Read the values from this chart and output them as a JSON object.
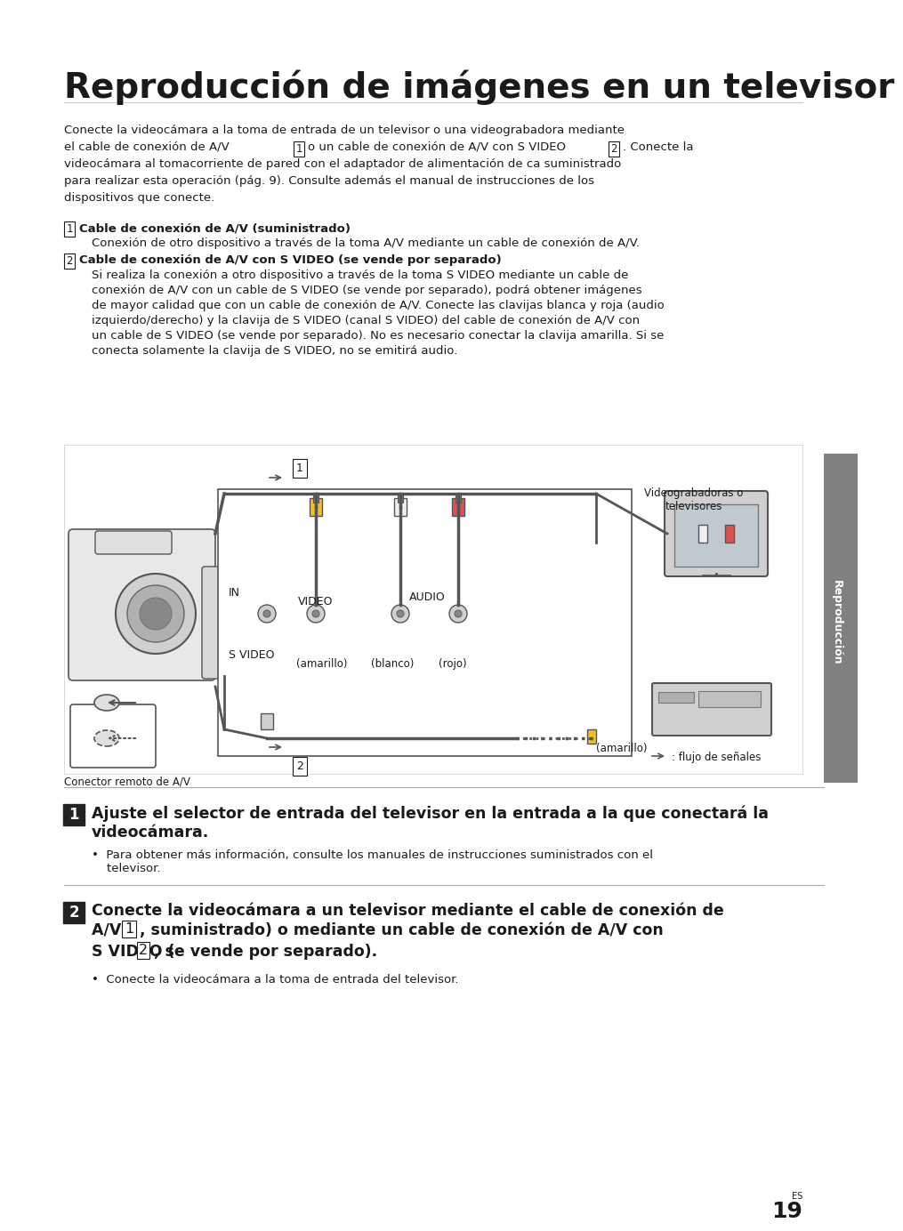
{
  "title": "Reproducción de imágenes en un televisor",
  "background_color": "#ffffff",
  "text_color": "#1a1a1a",
  "page_number": "19",
  "sidebar_text": "Reproducción",
  "sidebar_color": "#808080",
  "intro_paragraph": "Conecte la videocámara a la toma de entrada de un televisor o una videograbadora mediante\nel cable de conexión de A/V  1  o un cable de conexión de A/V con S VIDEO  2 . Conecte la\nvideocámara al tomacorriente de pared con el adaptador de alimentación de ca suministrado\npara realizar esta operación (pág. 9). Consulte además el manual de instrucciones de los\ndispositivos que conecte.",
  "item1_title": "Cable de conexión de A/V (suministrado)",
  "item1_body": "Conexión de otro dispositivo a través de la toma A/V mediante un cable de conexión de A/V.",
  "item2_title": "Cable de conexión de A/V con S VIDEO (se vende por separado)",
  "item2_body": "Si realiza la conexión a otro dispositivo a través de la toma S VIDEO mediante un cable de\nconexión de A/V con un cable de S VIDEO (se vende por separado), podrá obtener imágenes\nde mayor calidad que con un cable de conexión de A/V. Conecte las clavijas blanca y roja (audio\nizquierdo/derecho) y la clavija de S VIDEO (canal S VIDEO) del cable de conexión de A/V con\nun cable de S VIDEO (se vende por separado). No es necesario conectar la clavija amarilla. Si se\nconecta solamente la clavija de S VIDEO, no se emitirá audio.",
  "step1_text": "Ajuste el selector de entrada del televisor en la entrada a la que conectará la\nvideocámara.",
  "step1_bullet": "Para obtener más información, consulte los manuales de instrucciones suministrados con el\ntelevisor.",
  "step2_text": "Conecte la videocámara a un televisor mediante el cable de conexión de\nA/V ( 1 , suministrado) o mediante un cable de conexión de A/V con\nS VIDEO ( 2 , se vende por separado).",
  "step2_bullet": "Conecte la videocámara a la toma de entrada del televisor.",
  "diagram_labels": {
    "videograbadoras": "Videograbadoras o\ntelevisores",
    "IN": "IN",
    "VIDEO": "VIDEO",
    "AUDIO": "AUDIO",
    "S_VIDEO": "S VIDEO",
    "amarillo1": "(amarillo)",
    "blanco": "(blanco)",
    "rojo": "(rojo)",
    "amarillo2": "(amarillo)",
    "flujo": ": flujo de señales",
    "conector": "Conector remoto de A/V",
    "label1": "1",
    "label2": "2"
  }
}
